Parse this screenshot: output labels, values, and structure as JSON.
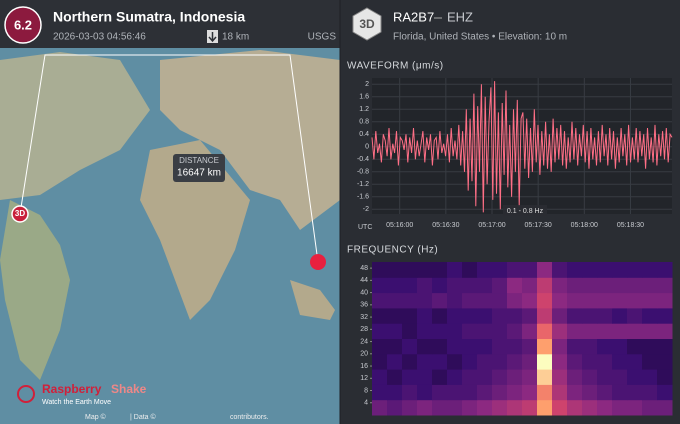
{
  "event": {
    "magnitude": "6.2",
    "location": "Northern Sumatra, Indonesia",
    "time": "2026-03-03 04:56:46",
    "depth": "18 km",
    "source": "USGS"
  },
  "station": {
    "badge": "3D",
    "code": "RA2B7",
    "channel": "EHZ",
    "info": "Florida, United States • Elevation: 10 m"
  },
  "map": {
    "distance_label": "DISTANCE",
    "distance": "16647 km",
    "station_marker": "3D",
    "brand_name": "Raspberry",
    "brand_suffix": "Shake",
    "tagline": "Watch the Earth Move",
    "attribution_map": "Map ©",
    "attribution_data": "| Data ©",
    "attribution_end": "contributors."
  },
  "chart_data": [
    {
      "type": "line",
      "title": "WAVEFORM (μm/s)",
      "color": "#ff6f86",
      "grid": true,
      "x_label": "UTC",
      "annotation": "0.1 - 0.8 Hz",
      "xlim": [
        942,
        1137
      ],
      "xticks": [
        {
          "value": 960,
          "label": "05:16:00"
        },
        {
          "value": 990,
          "label": "05:16:30"
        },
        {
          "value": 1020,
          "label": "05:17:00"
        },
        {
          "value": 1050,
          "label": "05:17:30"
        },
        {
          "value": 1080,
          "label": "05:18:00"
        },
        {
          "value": 1110,
          "label": "05:18:30"
        }
      ],
      "ylim": [
        -2.15,
        2.2
      ],
      "yticks": [
        2,
        1.6,
        1.2,
        0.8,
        0.4,
        0,
        -0.4,
        -0.8,
        -1.2,
        -1.6,
        -2
      ],
      "values": [
        0.3,
        -0.4,
        0.5,
        -0.2,
        0.1,
        -0.5,
        0.4,
        0.2,
        -0.3,
        0.6,
        -0.4,
        0.1,
        -0.2,
        0.5,
        -0.6,
        0.3,
        0.2,
        -0.1,
        0.4,
        -0.5,
        0.3,
        -0.2,
        0.6,
        -0.4,
        0.2,
        -0.3,
        0.1,
        0.5,
        -0.5,
        0.3,
        -0.1,
        0.4,
        -0.6,
        0.2,
        0.3,
        -0.4,
        0.5,
        -0.2,
        0.1,
        -0.3,
        0.4,
        -0.5,
        0.6,
        -0.3,
        0.2,
        -0.4,
        0.7,
        -0.6,
        0.5,
        -0.8,
        1.2,
        -1.4,
        0.9,
        -1.1,
        1.7,
        -1.9,
        1.3,
        -0.8,
        2.0,
        -2.1,
        1.6,
        -1.2,
        0.8,
        1.9,
        -1.7,
        2.1,
        -1.5,
        1.1,
        -2.0,
        1.4,
        -0.9,
        1.8,
        -1.3,
        0.7,
        -1.6,
        1.2,
        -0.8,
        1.5,
        -1.9,
        0.9,
        1.1,
        -0.7,
        0.9,
        -1.0,
        0.6,
        -0.8,
        1.2,
        -0.5,
        0.7,
        -0.9,
        0.5,
        -0.6,
        0.8,
        -0.7,
        0.4,
        -0.8,
        0.9,
        -0.5,
        0.6,
        -0.4,
        0.7,
        -0.6,
        0.5,
        -0.7,
        0.3,
        -0.5,
        0.8,
        -0.4,
        0.6,
        -0.6,
        0.4,
        -0.3,
        0.7,
        -0.5,
        0.5,
        -0.7,
        0.6,
        -0.4,
        0.3,
        -0.6,
        0.5,
        -0.5,
        0.7,
        -0.3,
        0.4,
        -0.6,
        0.6,
        -0.4,
        0.5,
        -0.7,
        0.3,
        -0.5,
        0.6,
        -0.3,
        0.4,
        -0.6,
        0.7,
        -0.5,
        0.3,
        -0.4,
        0.6,
        -0.5,
        0.5,
        -0.3,
        0.4,
        -0.7,
        0.6,
        -0.4,
        0.3,
        -0.5,
        0.7,
        -0.6,
        0.4,
        -0.3,
        0.5,
        -0.4,
        0.6,
        -0.5,
        0.4,
        0.3
      ]
    },
    {
      "type": "heatmap",
      "title": "FREQUENCY  (Hz)",
      "ylim": [
        0,
        50
      ],
      "yticks": [
        48,
        44,
        40,
        36,
        32,
        28,
        24,
        20,
        16,
        12,
        8,
        4
      ],
      "values": [
        [
          0.4,
          0.35,
          0.4,
          0.45,
          0.4,
          0.4,
          0.45,
          0.5,
          0.55,
          0.6,
          0.65,
          0.9,
          0.7,
          0.6,
          0.55,
          0.5,
          0.45,
          0.45,
          0.4,
          0.4
        ],
        [
          0.25,
          0.25,
          0.3,
          0.25,
          0.3,
          0.3,
          0.3,
          0.35,
          0.4,
          0.45,
          0.5,
          0.85,
          0.6,
          0.45,
          0.4,
          0.35,
          0.3,
          0.3,
          0.3,
          0.25
        ],
        [
          0.25,
          0.2,
          0.25,
          0.25,
          0.2,
          0.25,
          0.3,
          0.3,
          0.35,
          0.4,
          0.45,
          0.95,
          0.55,
          0.4,
          0.35,
          0.3,
          0.3,
          0.25,
          0.25,
          0.2
        ],
        [
          0.2,
          0.25,
          0.2,
          0.25,
          0.25,
          0.2,
          0.25,
          0.3,
          0.3,
          0.35,
          0.4,
          1.0,
          0.5,
          0.35,
          0.3,
          0.3,
          0.25,
          0.25,
          0.2,
          0.2
        ],
        [
          0.2,
          0.2,
          0.25,
          0.2,
          0.2,
          0.25,
          0.25,
          0.25,
          0.3,
          0.3,
          0.35,
          0.9,
          0.45,
          0.3,
          0.3,
          0.25,
          0.25,
          0.2,
          0.2,
          0.2
        ],
        [
          0.25,
          0.25,
          0.2,
          0.25,
          0.25,
          0.25,
          0.3,
          0.3,
          0.3,
          0.35,
          0.45,
          0.8,
          0.55,
          0.45,
          0.45,
          0.45,
          0.45,
          0.45,
          0.45,
          0.45
        ],
        [
          0.2,
          0.2,
          0.2,
          0.25,
          0.2,
          0.25,
          0.25,
          0.25,
          0.3,
          0.3,
          0.35,
          0.65,
          0.4,
          0.3,
          0.3,
          0.3,
          0.25,
          0.3,
          0.25,
          0.25
        ],
        [
          0.3,
          0.3,
          0.3,
          0.3,
          0.35,
          0.3,
          0.35,
          0.35,
          0.35,
          0.45,
          0.5,
          0.7,
          0.5,
          0.45,
          0.45,
          0.45,
          0.45,
          0.45,
          0.45,
          0.45
        ],
        [
          0.25,
          0.25,
          0.25,
          0.3,
          0.25,
          0.3,
          0.3,
          0.3,
          0.35,
          0.5,
          0.45,
          0.65,
          0.45,
          0.4,
          0.4,
          0.4,
          0.4,
          0.4,
          0.4,
          0.4
        ],
        [
          0.2,
          0.2,
          0.2,
          0.2,
          0.2,
          0.25,
          0.2,
          0.25,
          0.25,
          0.3,
          0.3,
          0.5,
          0.3,
          0.25,
          0.25,
          0.25,
          0.25,
          0.25,
          0.25,
          0.25
        ]
      ]
    }
  ]
}
